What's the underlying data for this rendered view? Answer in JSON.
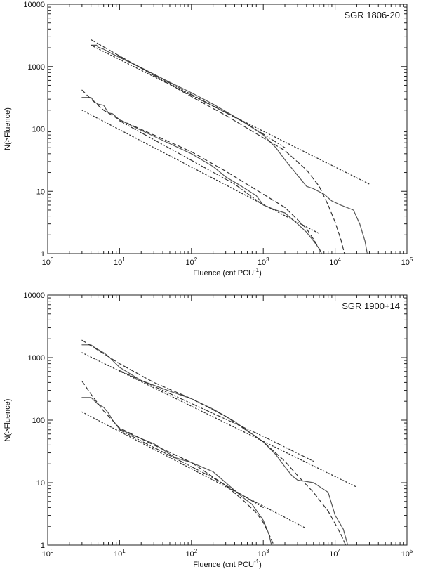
{
  "colors": {
    "axis": "#222222",
    "data": "#555555",
    "fit": "#333333"
  },
  "chart_data": [
    {
      "type": "line",
      "title": "SGR 1806-20",
      "xlabel": "Fluence (cnt PCU",
      "xlabel_sup": "-1",
      "xlabel_end": ")",
      "ylabel": "N(>Fluence)",
      "xscale": "log",
      "yscale": "log",
      "xlim": [
        1,
        100000
      ],
      "ylim": [
        1,
        10000
      ],
      "xticklabels": [
        {
          "base": "10",
          "exp": "0"
        },
        {
          "base": "10",
          "exp": "1"
        },
        {
          "base": "10",
          "exp": "2"
        },
        {
          "base": "10",
          "exp": "3"
        },
        {
          "base": "10",
          "exp": "4"
        },
        {
          "base": "10",
          "exp": "5"
        }
      ],
      "yticklabels": [
        "1",
        "10",
        "100",
        "1000",
        "10000"
      ],
      "series": [
        {
          "style": "solid",
          "points": [
            [
              4,
              2200
            ],
            [
              4.8,
              2200
            ],
            [
              5,
              2050
            ],
            [
              6,
              1900
            ],
            [
              7,
              1720
            ],
            [
              10,
              1400
            ],
            [
              20,
              960
            ],
            [
              50,
              560
            ],
            [
              100,
              380
            ],
            [
              200,
              250
            ],
            [
              500,
              135
            ],
            [
              800,
              95
            ],
            [
              1000,
              80
            ],
            [
              1500,
              50
            ],
            [
              2000,
              32
            ],
            [
              3000,
              18
            ],
            [
              4000,
              12
            ],
            [
              5000,
              11
            ],
            [
              7000,
              9
            ],
            [
              9000,
              7
            ],
            [
              12000,
              6
            ],
            [
              18000,
              5
            ],
            [
              22000,
              3
            ],
            [
              26000,
              1.6
            ],
            [
              28000,
              1
            ]
          ]
        },
        {
          "style": "dashed",
          "points": [
            [
              4,
              2700
            ],
            [
              10,
              1480
            ],
            [
              30,
              720
            ],
            [
              100,
              330
            ],
            [
              300,
              165
            ],
            [
              1000,
              72
            ],
            [
              2000,
              45
            ],
            [
              4000,
              22
            ],
            [
              6000,
              12
            ],
            [
              8000,
              6
            ],
            [
              10000,
              3.2
            ],
            [
              12000,
              1.7
            ],
            [
              13500,
              1
            ]
          ]
        },
        {
          "style": "dotted",
          "points": [
            [
              4,
              2200
            ],
            [
              30000,
              13
            ]
          ]
        },
        {
          "style": "dashdot",
          "points": [
            [
              10,
              1450
            ],
            [
              600,
              120
            ],
            [
              2000,
              50
            ]
          ]
        },
        {
          "style": "solid",
          "points": [
            [
              3,
              320
            ],
            [
              4,
              320
            ],
            [
              4.5,
              270
            ],
            [
              5,
              250
            ],
            [
              6,
              240
            ],
            [
              7,
              180
            ],
            [
              8,
              175
            ],
            [
              10,
              140
            ],
            [
              20,
              95
            ],
            [
              50,
              58
            ],
            [
              100,
              40
            ],
            [
              200,
              25
            ],
            [
              300,
              17
            ],
            [
              500,
              12
            ],
            [
              800,
              8.5
            ],
            [
              1000,
              6
            ],
            [
              1500,
              5
            ],
            [
              2000,
              4.5
            ],
            [
              3000,
              3
            ],
            [
              4000,
              2.2
            ],
            [
              5000,
              1.6
            ],
            [
              6000,
              1.2
            ],
            [
              6500,
              1
            ]
          ]
        },
        {
          "style": "dashed",
          "points": [
            [
              3,
              420
            ],
            [
              4,
              300
            ],
            [
              6,
              200
            ],
            [
              10,
              140
            ],
            [
              30,
              80
            ],
            [
              100,
              43
            ],
            [
              300,
              21
            ],
            [
              1000,
              9
            ],
            [
              2000,
              5.5
            ],
            [
              3000,
              3.5
            ],
            [
              4000,
              2.5
            ],
            [
              5000,
              1.7
            ],
            [
              6000,
              1.2
            ],
            [
              6500,
              1
            ]
          ]
        },
        {
          "style": "dotted",
          "points": [
            [
              3,
              200
            ],
            [
              6000,
              2.1
            ]
          ]
        },
        {
          "style": "dashdot",
          "points": [
            [
              10,
              135
            ],
            [
              400,
              13
            ],
            [
              1000,
              6
            ]
          ]
        }
      ]
    },
    {
      "type": "line",
      "title": "SGR 1900+14",
      "xlabel": "Fluence (cnt PCU",
      "xlabel_sup": "-1",
      "xlabel_end": ")",
      "ylabel": "N(>Fluence)",
      "xscale": "log",
      "yscale": "log",
      "xlim": [
        1,
        100000
      ],
      "ylim": [
        1,
        10000
      ],
      "xticklabels": [
        {
          "base": "10",
          "exp": "0"
        },
        {
          "base": "10",
          "exp": "1"
        },
        {
          "base": "10",
          "exp": "2"
        },
        {
          "base": "10",
          "exp": "3"
        },
        {
          "base": "10",
          "exp": "4"
        },
        {
          "base": "10",
          "exp": "5"
        }
      ],
      "yticklabels": [
        "1",
        "10",
        "100",
        "1000",
        "10000"
      ],
      "series": [
        {
          "style": "solid",
          "points": [
            [
              3,
              1600
            ],
            [
              4,
              1600
            ],
            [
              4.5,
              1450
            ],
            [
              5,
              1350
            ],
            [
              6,
              1200
            ],
            [
              7,
              1050
            ],
            [
              8,
              900
            ],
            [
              10,
              700
            ],
            [
              20,
              430
            ],
            [
              50,
              290
            ],
            [
              100,
              220
            ],
            [
              200,
              150
            ],
            [
              400,
              95
            ],
            [
              700,
              60
            ],
            [
              1000,
              45
            ],
            [
              1500,
              28
            ],
            [
              2000,
              18
            ],
            [
              2500,
              13
            ],
            [
              3000,
              11
            ],
            [
              5000,
              10
            ],
            [
              8000,
              7
            ],
            [
              10000,
              3
            ],
            [
              13000,
              1.8
            ],
            [
              15000,
              1
            ]
          ]
        },
        {
          "style": "dashed",
          "points": [
            [
              3,
              1900
            ],
            [
              10,
              800
            ],
            [
              30,
              400
            ],
            [
              100,
              220
            ],
            [
              300,
              115
            ],
            [
              1000,
              45
            ],
            [
              2000,
              22
            ],
            [
              3000,
              13
            ],
            [
              5000,
              7
            ],
            [
              8000,
              3.5
            ],
            [
              10000,
              2.2
            ],
            [
              12000,
              1.5
            ],
            [
              14000,
              1
            ]
          ]
        },
        {
          "style": "dotted",
          "points": [
            [
              3,
              1200
            ],
            [
              20000,
              8.5
            ]
          ]
        },
        {
          "style": "dashdot",
          "points": [
            [
              10,
              620
            ],
            [
              1000,
              55
            ],
            [
              5000,
              22
            ]
          ]
        },
        {
          "style": "solid",
          "points": [
            [
              3,
              230
            ],
            [
              4,
              230
            ],
            [
              5,
              180
            ],
            [
              6,
              160
            ],
            [
              7,
              130
            ],
            [
              8,
              100
            ],
            [
              10,
              72
            ],
            [
              15,
              58
            ],
            [
              30,
              42
            ],
            [
              60,
              25
            ],
            [
              100,
              21
            ],
            [
              200,
              15
            ],
            [
              300,
              10
            ],
            [
              500,
              6
            ],
            [
              700,
              4.5
            ],
            [
              1000,
              2.5
            ],
            [
              1200,
              1.5
            ],
            [
              1300,
              1
            ]
          ]
        },
        {
          "style": "dashed",
          "points": [
            [
              3,
              420
            ],
            [
              4,
              260
            ],
            [
              6,
              140
            ],
            [
              10,
              75
            ],
            [
              30,
              40
            ],
            [
              100,
              21
            ],
            [
              300,
              9
            ],
            [
              500,
              5.5
            ],
            [
              800,
              3.3
            ],
            [
              1000,
              2.3
            ],
            [
              1200,
              1.5
            ],
            [
              1400,
              1
            ]
          ]
        },
        {
          "style": "dotted",
          "points": [
            [
              3,
              135
            ],
            [
              3800,
              1.9
            ]
          ]
        },
        {
          "style": "dashdot",
          "points": [
            [
              10,
              70
            ],
            [
              200,
              12
            ],
            [
              1000,
              4
            ]
          ]
        }
      ]
    }
  ]
}
